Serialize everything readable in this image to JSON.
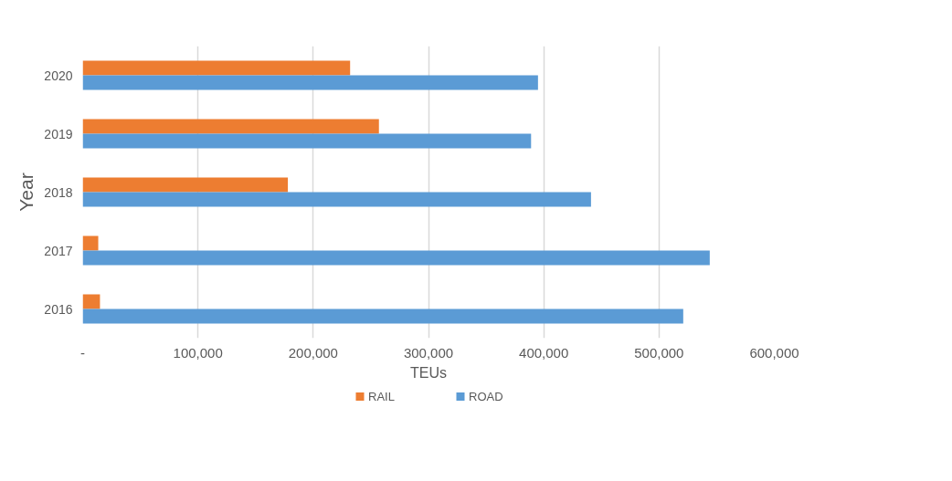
{
  "chart_data": {
    "type": "bar",
    "orientation": "horizontal",
    "xlabel": "TEUs",
    "ylabel": "Year",
    "categories": [
      "2020",
      "2019",
      "2018",
      "2017",
      "2016"
    ],
    "series": [
      {
        "name": "RAIL",
        "color": "#ed7d31",
        "values": [
          232000,
          257000,
          178000,
          13500,
          15000
        ]
      },
      {
        "name": "ROAD",
        "color": "#5b9bd5",
        "values": [
          395000,
          389000,
          441000,
          544000,
          521000
        ]
      }
    ],
    "xlim": [
      0,
      600000
    ],
    "xticks": [
      {
        "value": 0,
        "label": "-"
      },
      {
        "value": 100000,
        "label": "100,000"
      },
      {
        "value": 200000,
        "label": "200,000"
      },
      {
        "value": 300000,
        "label": "300,000"
      },
      {
        "value": 400000,
        "label": "400,000"
      },
      {
        "value": 500000,
        "label": "500,000"
      },
      {
        "value": 600000,
        "label": "600,000"
      }
    ],
    "grid": "x",
    "legend": "bottom"
  }
}
